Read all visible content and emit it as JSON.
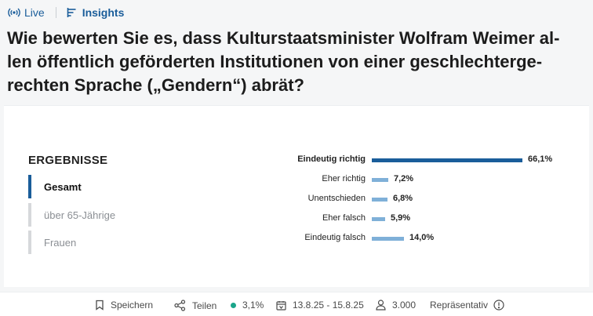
{
  "tabs": [
    {
      "label": "Live",
      "icon": "broadcast-icon"
    },
    {
      "label": "Insights",
      "icon": "bar-chart-icon"
    }
  ],
  "question": {
    "lines": [
      "Wie bewerten Sie es, dass Kulturstaatsminister Wolfram Weimer al-",
      "len öffentlich geförderten Institutionen von einer geschlechterge-",
      "rechten Sprache („Gendern“) abrät?"
    ]
  },
  "results": {
    "title": "ERGEBNISSE",
    "filters": [
      {
        "label": "Gesamt",
        "active": true
      },
      {
        "label": "über 65-Jährige",
        "active": false
      },
      {
        "label": "Frauen",
        "active": false
      }
    ]
  },
  "chart_data": {
    "type": "bar",
    "orientation": "horizontal",
    "categories": [
      "Eindeutig richtig",
      "Eher richtig",
      "Unentschieden",
      "Eher falsch",
      "Eindeutig falsch"
    ],
    "values": [
      66.1,
      7.2,
      6.8,
      5.9,
      14.0
    ],
    "value_labels": [
      "66,1%",
      "7,2%",
      "6,8%",
      "5,9%",
      "14,0%"
    ],
    "unit": "%",
    "colors": {
      "highlight": "#1a5d9a",
      "default": "#7fb0d8"
    }
  },
  "footer": {
    "save_label": "Speichern",
    "share_label": "Teilen",
    "margin_of_error": "3,1%",
    "date_range": "13.8.25 - 15.8.25",
    "respondents": "3.000",
    "representative_label": "Repräsentativ",
    "status_color": "#1aa58a"
  },
  "colors": {
    "accent": "#1a5d9a",
    "text": "#1c1c1c"
  }
}
